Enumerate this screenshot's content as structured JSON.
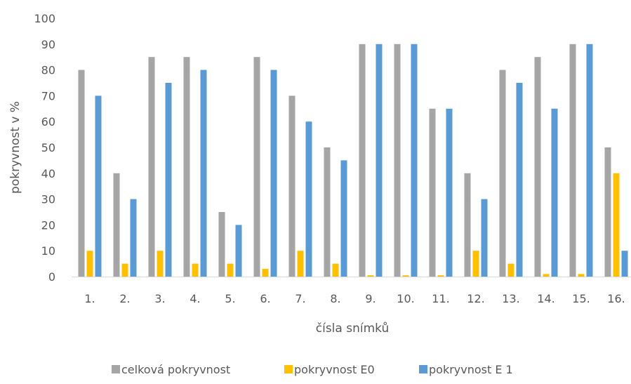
{
  "chart_data": {
    "type": "bar",
    "title": "",
    "xlabel": "čísla snímků",
    "ylabel": "pokryvnost v %",
    "ylim": [
      0,
      100
    ],
    "yticks": [
      0,
      10,
      20,
      30,
      40,
      50,
      60,
      70,
      80,
      90,
      100
    ],
    "grid": false,
    "legend_position": "bottom",
    "categories": [
      "1.",
      "2.",
      "3.",
      "4.",
      "5.",
      "6.",
      "7.",
      "8.",
      "9.",
      "10.",
      "11.",
      "12.",
      "13.",
      "14.",
      "15.",
      "16."
    ],
    "series": [
      {
        "name": "celková pokryvnost",
        "color": "#a5a5a5",
        "values": [
          80,
          40,
          85,
          85,
          25,
          85,
          70,
          50,
          90,
          90,
          65,
          40,
          80,
          85,
          90,
          50
        ]
      },
      {
        "name": "pokryvnost E0",
        "color": "#ffc000",
        "values": [
          10,
          5,
          10,
          5,
          5,
          3,
          10,
          5,
          0.5,
          0.5,
          0.5,
          10,
          5,
          1,
          1,
          40
        ]
      },
      {
        "name": "pokryvnost E 1",
        "color": "#5b9bd5",
        "values": [
          70,
          30,
          75,
          80,
          20,
          80,
          60,
          45,
          90,
          90,
          65,
          30,
          75,
          65,
          90,
          10
        ]
      }
    ]
  }
}
